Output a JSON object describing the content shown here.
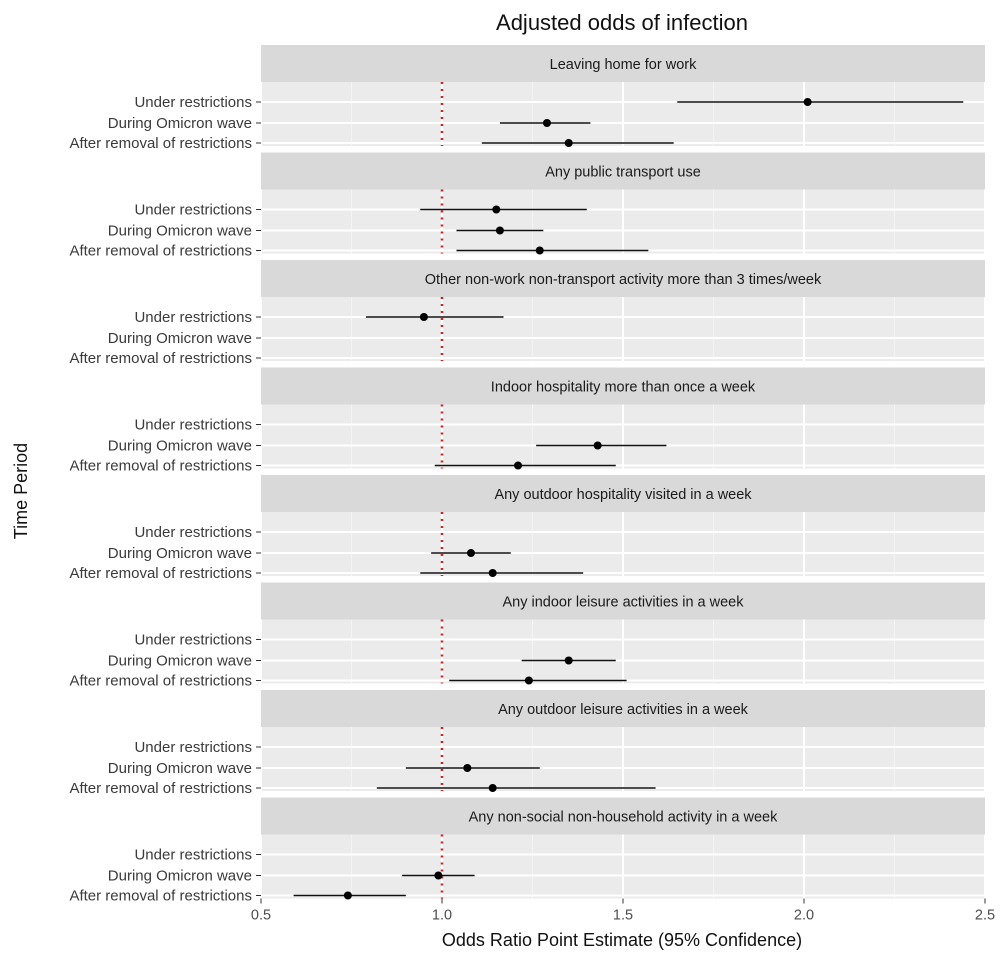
{
  "chart_data": {
    "type": "scatter",
    "subtype": "forest-plot",
    "title": "Adjusted odds of infection",
    "xlabel": "Odds Ratio Point Estimate (95% Confidence)",
    "ylabel": "Time Period",
    "xlim": [
      0.5,
      2.5
    ],
    "xticks": [
      0.5,
      1.0,
      1.5,
      2.0,
      2.5
    ],
    "xtick_labels": [
      "0.5",
      "1.0",
      "1.5",
      "2.0",
      "2.5"
    ],
    "reference_line": {
      "x": 1.0,
      "style": "dotted",
      "color": "#cc2222"
    },
    "grid": true,
    "row_labels": [
      "Under restrictions",
      "During Omicron wave",
      "After removal of restrictions"
    ],
    "panels": [
      {
        "name": "Leaving home for work",
        "rows": [
          {
            "estimate": 2.01,
            "lower": 1.65,
            "upper": 2.44
          },
          {
            "estimate": 1.29,
            "lower": 1.16,
            "upper": 1.41
          },
          {
            "estimate": 1.35,
            "lower": 1.11,
            "upper": 1.64
          }
        ]
      },
      {
        "name": "Any public transport use",
        "rows": [
          {
            "estimate": 1.15,
            "lower": 0.94,
            "upper": 1.4
          },
          {
            "estimate": 1.16,
            "lower": 1.04,
            "upper": 1.28
          },
          {
            "estimate": 1.27,
            "lower": 1.04,
            "upper": 1.57
          }
        ]
      },
      {
        "name": "Other non-work non-transport activity more than 3 times/week",
        "rows": [
          {
            "estimate": 0.95,
            "lower": 0.79,
            "upper": 1.17
          },
          null,
          null
        ]
      },
      {
        "name": "Indoor hospitality more than once a week",
        "rows": [
          null,
          {
            "estimate": 1.43,
            "lower": 1.26,
            "upper": 1.62
          },
          {
            "estimate": 1.21,
            "lower": 0.98,
            "upper": 1.48
          }
        ]
      },
      {
        "name": "Any outdoor hospitality visited in a week",
        "rows": [
          null,
          {
            "estimate": 1.08,
            "lower": 0.97,
            "upper": 1.19
          },
          {
            "estimate": 1.14,
            "lower": 0.94,
            "upper": 1.39
          }
        ]
      },
      {
        "name": "Any indoor leisure activities in a week",
        "rows": [
          null,
          {
            "estimate": 1.35,
            "lower": 1.22,
            "upper": 1.48
          },
          {
            "estimate": 1.24,
            "lower": 1.02,
            "upper": 1.51
          }
        ]
      },
      {
        "name": "Any outdoor leisure activities in a week",
        "rows": [
          null,
          {
            "estimate": 1.07,
            "lower": 0.9,
            "upper": 1.27
          },
          {
            "estimate": 1.14,
            "lower": 0.82,
            "upper": 1.59
          }
        ]
      },
      {
        "name": "Any non-social non-household activity in a week",
        "rows": [
          null,
          {
            "estimate": 0.99,
            "lower": 0.89,
            "upper": 1.09
          },
          {
            "estimate": 0.74,
            "lower": 0.59,
            "upper": 0.9
          }
        ]
      }
    ]
  }
}
